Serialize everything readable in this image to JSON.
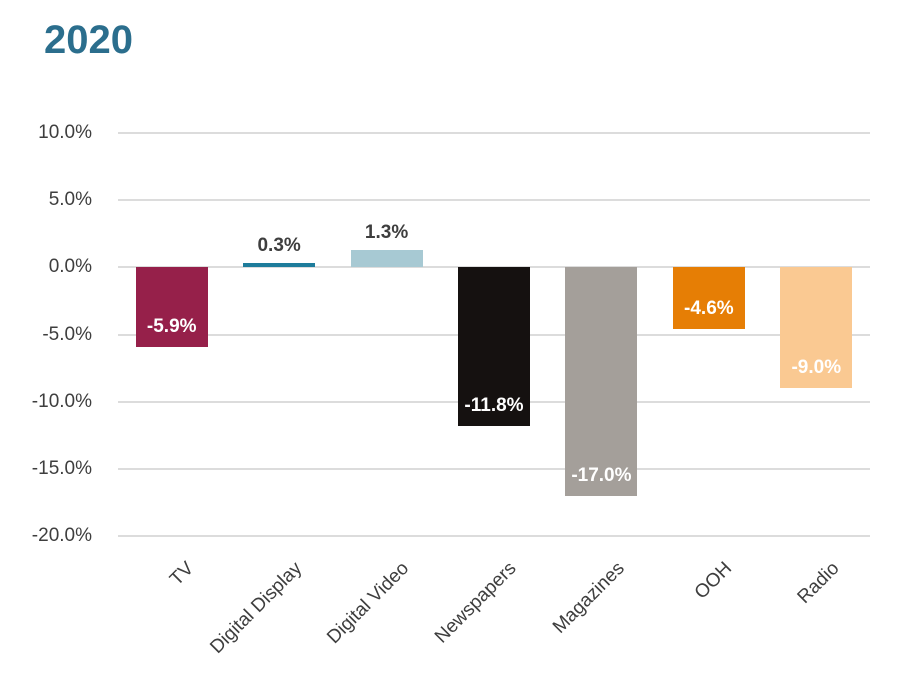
{
  "chart_data": {
    "type": "bar",
    "title": "2020",
    "categories": [
      "TV",
      "Digital Display",
      "Digital Video",
      "Newspapers",
      "Magazines",
      "OOH",
      "Radio"
    ],
    "values": [
      -5.9,
      0.3,
      1.3,
      -11.8,
      -17.0,
      -4.6,
      -9.0
    ],
    "value_labels": [
      "-5.9%",
      "0.3%",
      "1.3%",
      "-11.8%",
      "-17.0%",
      "-4.6%",
      "-9.0%"
    ],
    "bar_colors": [
      "#96204A",
      "#1E7C9B",
      "#A7C9D3",
      "#151110",
      "#A49F9A",
      "#E67E05",
      "#FAC992"
    ],
    "y_ticks": [
      10,
      5,
      0,
      -5,
      -10,
      -15,
      -20
    ],
    "y_tick_labels": [
      "10.0%",
      "5.0%",
      "0.0%",
      "-5.0%",
      "-10.0%",
      "-15.0%",
      "-20.0%"
    ],
    "ylim": [
      -20,
      10
    ],
    "xlabel": "",
    "ylabel": "",
    "grid": "horizontal",
    "legend": "none",
    "label_placement": {
      "negative": "inside-bottom-white",
      "positive": "above-dark"
    },
    "colors": {
      "title": "#2B6E8D",
      "axis_text": "#3E3E3E",
      "gridline": "#DCDCDC",
      "inside_label": "#FFFFFF",
      "background": "#FFFFFF"
    }
  }
}
